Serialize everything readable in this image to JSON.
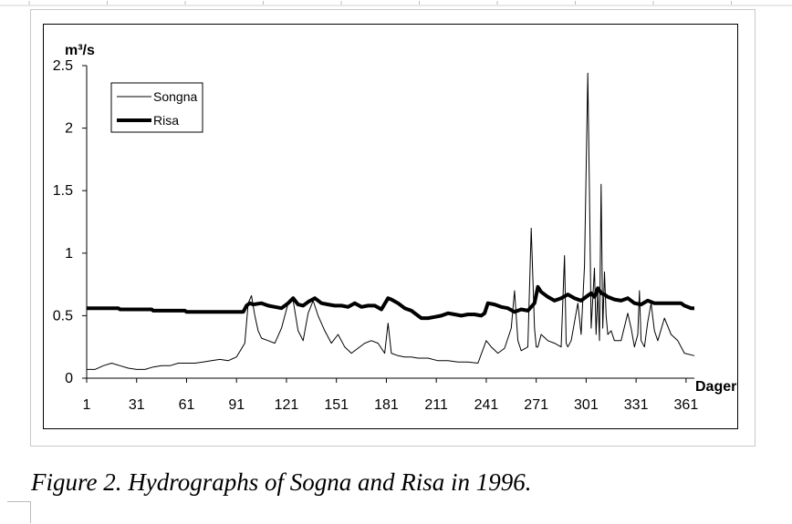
{
  "chart_data": {
    "type": "line",
    "title": "",
    "ylabel": "m³/s",
    "xlabel": "Dager",
    "xlim": [
      1,
      366
    ],
    "ylim": [
      0,
      2.5
    ],
    "x_ticks": [
      1,
      31,
      61,
      91,
      121,
      151,
      181,
      211,
      241,
      271,
      301,
      331,
      361
    ],
    "y_ticks": [
      0,
      0.5,
      1,
      1.5,
      2,
      2.5
    ],
    "y_tick_labels": [
      "0",
      "0.5",
      "1",
      "1.5",
      "2",
      "2.5"
    ],
    "grid": false,
    "legend_position": "top-left",
    "series": [
      {
        "name": "Songna",
        "color": "#000000",
        "x": [
          1,
          6,
          11,
          16,
          21,
          26,
          31,
          36,
          41,
          46,
          51,
          56,
          61,
          66,
          71,
          76,
          81,
          86,
          91,
          96,
          98,
          100,
          102,
          104,
          106,
          110,
          114,
          118,
          122,
          125,
          128,
          131,
          134,
          137,
          140,
          144,
          148,
          152,
          156,
          160,
          164,
          168,
          172,
          176,
          180,
          182,
          184,
          188,
          192,
          196,
          200,
          206,
          212,
          218,
          224,
          230,
          236,
          241,
          244,
          248,
          252,
          256,
          258,
          260,
          262,
          266,
          268,
          270,
          271,
          272,
          274,
          278,
          282,
          286,
          288,
          289,
          290,
          292,
          296,
          298,
          300,
          302,
          303,
          304,
          306,
          307,
          308,
          309,
          310,
          311,
          312,
          313,
          314,
          316,
          318,
          322,
          326,
          328,
          330,
          332,
          333,
          334,
          336,
          338,
          340,
          342,
          344,
          348,
          352,
          356,
          360,
          366
        ],
        "y": [
          0.07,
          0.07,
          0.1,
          0.12,
          0.1,
          0.08,
          0.07,
          0.07,
          0.09,
          0.1,
          0.1,
          0.12,
          0.12,
          0.12,
          0.13,
          0.14,
          0.15,
          0.14,
          0.17,
          0.28,
          0.6,
          0.66,
          0.5,
          0.38,
          0.32,
          0.3,
          0.28,
          0.4,
          0.6,
          0.62,
          0.38,
          0.3,
          0.52,
          0.62,
          0.5,
          0.38,
          0.28,
          0.35,
          0.25,
          0.2,
          0.24,
          0.28,
          0.3,
          0.28,
          0.2,
          0.44,
          0.2,
          0.18,
          0.17,
          0.17,
          0.16,
          0.16,
          0.14,
          0.14,
          0.13,
          0.13,
          0.12,
          0.3,
          0.25,
          0.2,
          0.24,
          0.4,
          0.7,
          0.3,
          0.22,
          0.25,
          1.2,
          0.4,
          0.25,
          0.25,
          0.35,
          0.3,
          0.28,
          0.25,
          0.98,
          0.28,
          0.25,
          0.3,
          0.6,
          0.35,
          0.9,
          2.44,
          1.5,
          0.4,
          0.88,
          0.35,
          0.7,
          0.3,
          1.55,
          0.4,
          0.85,
          0.5,
          0.35,
          0.38,
          0.3,
          0.3,
          0.52,
          0.4,
          0.25,
          0.35,
          0.7,
          0.3,
          0.25,
          0.45,
          0.6,
          0.38,
          0.3,
          0.48,
          0.35,
          0.3,
          0.2,
          0.18
        ]
      },
      {
        "name": "Risa",
        "color": "#000000",
        "x": [
          1,
          20,
          21,
          40,
          41,
          60,
          61,
          75,
          76,
          95,
          97,
          99,
          101,
          106,
          110,
          114,
          118,
          122,
          125,
          128,
          131,
          134,
          138,
          142,
          146,
          150,
          154,
          158,
          162,
          166,
          170,
          174,
          178,
          182,
          184,
          188,
          192,
          196,
          200,
          202,
          206,
          210,
          214,
          218,
          222,
          226,
          230,
          234,
          238,
          240,
          242,
          246,
          250,
          254,
          258,
          262,
          266,
          270,
          272,
          274,
          278,
          282,
          286,
          290,
          294,
          298,
          302,
          304,
          306,
          308,
          310,
          312,
          314,
          318,
          322,
          326,
          330,
          334,
          338,
          342,
          346,
          350,
          354,
          358,
          360,
          362,
          364,
          366
        ],
        "y": [
          0.56,
          0.56,
          0.55,
          0.55,
          0.54,
          0.54,
          0.53,
          0.53,
          0.53,
          0.53,
          0.58,
          0.6,
          0.59,
          0.6,
          0.58,
          0.57,
          0.56,
          0.6,
          0.64,
          0.59,
          0.58,
          0.61,
          0.64,
          0.6,
          0.59,
          0.58,
          0.58,
          0.57,
          0.6,
          0.57,
          0.58,
          0.58,
          0.55,
          0.64,
          0.63,
          0.6,
          0.56,
          0.54,
          0.5,
          0.48,
          0.48,
          0.49,
          0.5,
          0.52,
          0.51,
          0.5,
          0.51,
          0.51,
          0.5,
          0.52,
          0.6,
          0.59,
          0.57,
          0.56,
          0.53,
          0.55,
          0.54,
          0.6,
          0.73,
          0.69,
          0.65,
          0.62,
          0.64,
          0.67,
          0.64,
          0.62,
          0.66,
          0.68,
          0.65,
          0.72,
          0.68,
          0.67,
          0.65,
          0.63,
          0.62,
          0.64,
          0.6,
          0.59,
          0.62,
          0.6,
          0.6,
          0.6,
          0.6,
          0.6,
          0.58,
          0.57,
          0.56,
          0.56
        ]
      }
    ]
  },
  "caption": "Figure 2. Hydrographs of Sogna and Risa in 1996."
}
